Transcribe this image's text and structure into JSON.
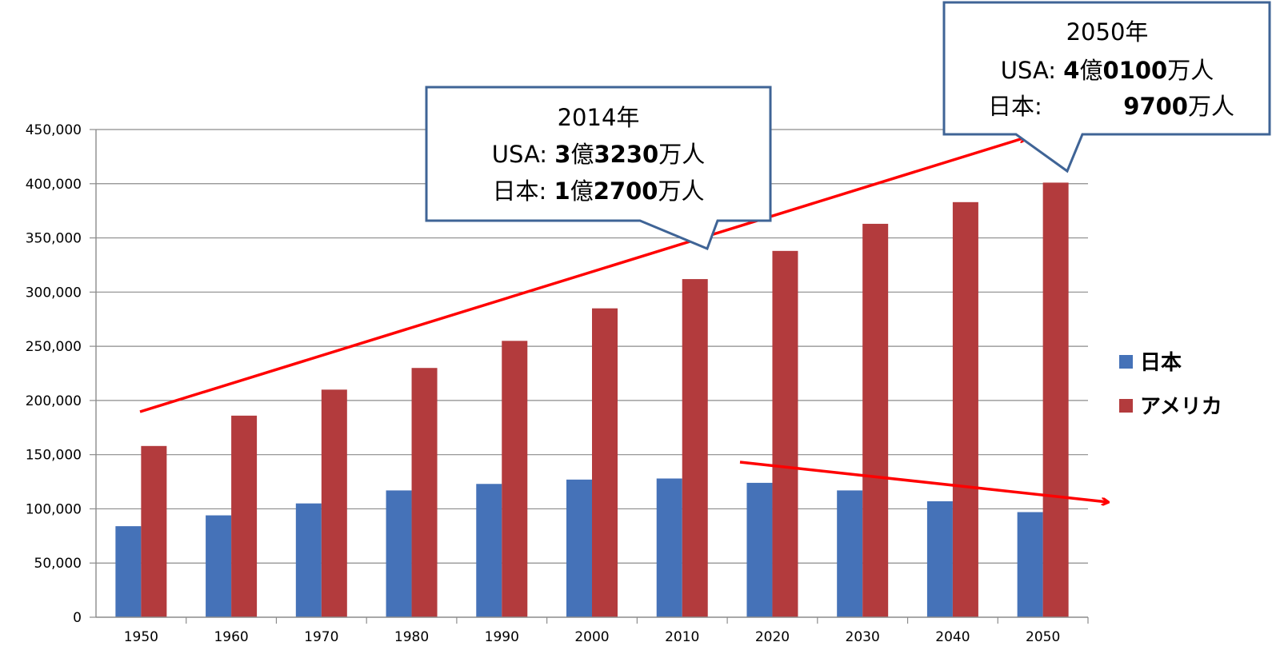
{
  "chart_data": {
    "type": "bar",
    "categories": [
      "1950",
      "1960",
      "1970",
      "1980",
      "1990",
      "2000",
      "2010",
      "2020",
      "2030",
      "2040",
      "2050"
    ],
    "series": [
      {
        "name": "日本",
        "color": "#4572b8",
        "values": [
          84000,
          94000,
          105000,
          117000,
          123000,
          127000,
          128000,
          124000,
          117000,
          107000,
          97000
        ]
      },
      {
        "name": "アメリカ",
        "color": "#b33b3d",
        "values": [
          158000,
          186000,
          210000,
          230000,
          255000,
          285000,
          312000,
          338000,
          363000,
          383000,
          401000
        ]
      }
    ],
    "ylim": [
      0,
      450000
    ],
    "yticks": [
      "0",
      "50,000",
      "100,000",
      "150,000",
      "200,000",
      "250,000",
      "300,000",
      "350,000",
      "400,000",
      "450,000"
    ],
    "grid": true,
    "legend_position": "right",
    "annotations": [
      {
        "year": "2014年",
        "usa_prefix": "USA: ",
        "usa_n1": "3",
        "usa_u1": "億",
        "usa_n2": "3230",
        "usa_u2": "万人",
        "jp_prefix": "日本: ",
        "jp_n1": "1",
        "jp_u1": "億",
        "jp_n2": "2700",
        "jp_u2": "万人"
      },
      {
        "year": "2050年",
        "usa_prefix": "USA: ",
        "usa_n1": "4",
        "usa_u1": "億",
        "usa_n2": "0100",
        "usa_u2": "万人",
        "jp_prefix": "日本:",
        "jp_n2": "9700",
        "jp_u2": "万人"
      }
    ],
    "trend_arrows": [
      {
        "series": "アメリカ",
        "direction": "up",
        "color": "#ff0000"
      },
      {
        "series": "日本",
        "direction": "down",
        "color": "#ff0000"
      }
    ]
  }
}
